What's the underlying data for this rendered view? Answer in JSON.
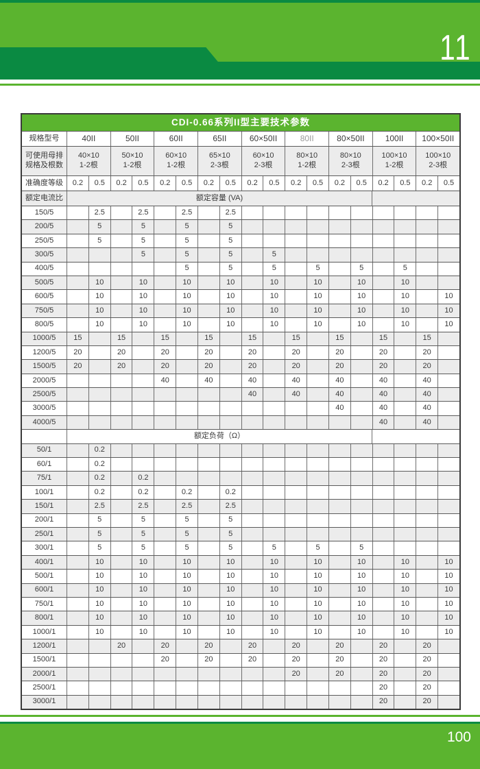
{
  "page": {
    "top_page_number": "11",
    "bottom_page_number": "100"
  },
  "colors": {
    "bright_green": "#5bb42f",
    "dark_green": "#0a8a42",
    "row_shade": "#ececec"
  },
  "table": {
    "title": "CDI-0.66系列II型主要技术参数",
    "spec_label": "规格型号",
    "models": [
      "40II",
      "50II",
      "60II",
      "65II",
      "60×50II",
      "80II",
      "80×50II",
      "100II",
      "100×50II"
    ],
    "models_muted": [
      5
    ],
    "busbar_label": [
      "可使用母排",
      "规格及根数"
    ],
    "busbars": [
      {
        "size": "40×10",
        "count": "1-2根"
      },
      {
        "size": "50×10",
        "count": "1-2根"
      },
      {
        "size": "60×10",
        "count": "1-2根"
      },
      {
        "size": "65×10",
        "count": "2-3根"
      },
      {
        "size": "60×10",
        "count": "2-3根"
      },
      {
        "size": "80×10",
        "count": "1-2根"
      },
      {
        "size": "80×10",
        "count": "2-3根"
      },
      {
        "size": "100×10",
        "count": "1-2根"
      },
      {
        "size": "100×10",
        "count": "2-3根"
      }
    ],
    "accuracy_label": "准确度等级",
    "accuracy_classes": [
      "0.2",
      "0.5"
    ],
    "current_ratio_label": "额定电流比",
    "va_section_header": "额定容量 (VA)",
    "ohm_section_header": "额定负荷（Ω）",
    "va_rows": [
      {
        "label": "150/5",
        "cells": [
          "",
          "2.5",
          "",
          "2.5",
          "",
          "2.5",
          "",
          "2.5",
          "",
          "",
          "",
          "",
          "",
          "",
          "",
          "",
          "",
          ""
        ]
      },
      {
        "label": "200/5",
        "cells": [
          "",
          "5",
          "",
          "5",
          "",
          "5",
          "",
          "5",
          "",
          "",
          "",
          "",
          "",
          "",
          "",
          "",
          "",
          ""
        ]
      },
      {
        "label": "250/5",
        "cells": [
          "",
          "5",
          "",
          "5",
          "",
          "5",
          "",
          "5",
          "",
          "",
          "",
          "",
          "",
          "",
          "",
          "",
          "",
          ""
        ]
      },
      {
        "label": "300/5",
        "cells": [
          "",
          "",
          "",
          "5",
          "",
          "5",
          "",
          "5",
          "",
          "5",
          "",
          "",
          "",
          "",
          "",
          "",
          "",
          ""
        ]
      },
      {
        "label": "400/5",
        "cells": [
          "",
          "",
          "",
          "",
          "",
          "5",
          "",
          "5",
          "",
          "5",
          "",
          "5",
          "",
          "5",
          "",
          "5",
          "",
          ""
        ]
      },
      {
        "label": "500/5",
        "cells": [
          "",
          "10",
          "",
          "10",
          "",
          "10",
          "",
          "10",
          "",
          "10",
          "",
          "10",
          "",
          "10",
          "",
          "10",
          "",
          ""
        ]
      },
      {
        "label": "600/5",
        "cells": [
          "",
          "10",
          "",
          "10",
          "",
          "10",
          "",
          "10",
          "",
          "10",
          "",
          "10",
          "",
          "10",
          "",
          "10",
          "",
          "10"
        ]
      },
      {
        "label": "750/5",
        "cells": [
          "",
          "10",
          "",
          "10",
          "",
          "10",
          "",
          "10",
          "",
          "10",
          "",
          "10",
          "",
          "10",
          "",
          "10",
          "",
          "10"
        ]
      },
      {
        "label": "800/5",
        "cells": [
          "",
          "10",
          "",
          "10",
          "",
          "10",
          "",
          "10",
          "",
          "10",
          "",
          "10",
          "",
          "10",
          "",
          "10",
          "",
          "10"
        ]
      },
      {
        "label": "1000/5",
        "cells": [
          "15",
          "",
          "15",
          "",
          "15",
          "",
          "15",
          "",
          "15",
          "",
          "15",
          "",
          "15",
          "",
          "15",
          "",
          "15",
          ""
        ]
      },
      {
        "label": "1200/5",
        "cells": [
          "20",
          "",
          "20",
          "",
          "20",
          "",
          "20",
          "",
          "20",
          "",
          "20",
          "",
          "20",
          "",
          "20",
          "",
          "20",
          ""
        ]
      },
      {
        "label": "1500/5",
        "cells": [
          "20",
          "",
          "20",
          "",
          "20",
          "",
          "20",
          "",
          "20",
          "",
          "20",
          "",
          "20",
          "",
          "20",
          "",
          "20",
          ""
        ]
      },
      {
        "label": "2000/5",
        "cells": [
          "",
          "",
          "",
          "",
          "40",
          "",
          "40",
          "",
          "40",
          "",
          "40",
          "",
          "40",
          "",
          "40",
          "",
          "40",
          ""
        ]
      },
      {
        "label": "2500/5",
        "cells": [
          "",
          "",
          "",
          "",
          "",
          "",
          "",
          "",
          "40",
          "",
          "40",
          "",
          "40",
          "",
          "40",
          "",
          "40",
          ""
        ]
      },
      {
        "label": "3000/5",
        "cells": [
          "",
          "",
          "",
          "",
          "",
          "",
          "",
          "",
          "",
          "",
          "",
          "",
          "40",
          "",
          "40",
          "",
          "40",
          ""
        ]
      },
      {
        "label": "4000/5",
        "cells": [
          "",
          "",
          "",
          "",
          "",
          "",
          "",
          "",
          "",
          "",
          "",
          "",
          "",
          "",
          "40",
          "",
          "40",
          ""
        ]
      }
    ],
    "ohm_rows": [
      {
        "label": "50/1",
        "cells": [
          "",
          "0.2",
          "",
          "",
          "",
          "",
          "",
          "",
          "",
          "",
          "",
          "",
          "",
          "",
          "",
          "",
          "",
          ""
        ]
      },
      {
        "label": "60/1",
        "cells": [
          "",
          "0.2",
          "",
          "",
          "",
          "",
          "",
          "",
          "",
          "",
          "",
          "",
          "",
          "",
          "",
          "",
          "",
          ""
        ]
      },
      {
        "label": "75/1",
        "cells": [
          "",
          "0.2",
          "",
          "0.2",
          "",
          "",
          "",
          "",
          "",
          "",
          "",
          "",
          "",
          "",
          "",
          "",
          "",
          ""
        ]
      },
      {
        "label": "100/1",
        "cells": [
          "",
          "0.2",
          "",
          "0.2",
          "",
          "0.2",
          "",
          "0.2",
          "",
          "",
          "",
          "",
          "",
          "",
          "",
          "",
          "",
          ""
        ]
      },
      {
        "label": "150/1",
        "cells": [
          "",
          "2.5",
          "",
          "2.5",
          "",
          "2.5",
          "",
          "2.5",
          "",
          "",
          "",
          "",
          "",
          "",
          "",
          "",
          "",
          ""
        ]
      },
      {
        "label": "200/1",
        "cells": [
          "",
          "5",
          "",
          "5",
          "",
          "5",
          "",
          "5",
          "",
          "",
          "",
          "",
          "",
          "",
          "",
          "",
          "",
          ""
        ]
      },
      {
        "label": "250/1",
        "cells": [
          "",
          "5",
          "",
          "5",
          "",
          "5",
          "",
          "5",
          "",
          "",
          "",
          "",
          "",
          "",
          "",
          "",
          "",
          ""
        ]
      },
      {
        "label": "300/1",
        "cells": [
          "",
          "5",
          "",
          "5",
          "",
          "5",
          "",
          "5",
          "",
          "5",
          "",
          "5",
          "",
          "5",
          "",
          "",
          "",
          ""
        ]
      },
      {
        "label": "400/1",
        "cells": [
          "",
          "10",
          "",
          "10",
          "",
          "10",
          "",
          "10",
          "",
          "10",
          "",
          "10",
          "",
          "10",
          "",
          "10",
          "",
          "10"
        ]
      },
      {
        "label": "500/1",
        "cells": [
          "",
          "10",
          "",
          "10",
          "",
          "10",
          "",
          "10",
          "",
          "10",
          "",
          "10",
          "",
          "10",
          "",
          "10",
          "",
          "10"
        ]
      },
      {
        "label": "600/1",
        "cells": [
          "",
          "10",
          "",
          "10",
          "",
          "10",
          "",
          "10",
          "",
          "10",
          "",
          "10",
          "",
          "10",
          "",
          "10",
          "",
          "10"
        ]
      },
      {
        "label": "750/1",
        "cells": [
          "",
          "10",
          "",
          "10",
          "",
          "10",
          "",
          "10",
          "",
          "10",
          "",
          "10",
          "",
          "10",
          "",
          "10",
          "",
          "10"
        ]
      },
      {
        "label": "800/1",
        "cells": [
          "",
          "10",
          "",
          "10",
          "",
          "10",
          "",
          "10",
          "",
          "10",
          "",
          "10",
          "",
          "10",
          "",
          "10",
          "",
          "10"
        ]
      },
      {
        "label": "1000/1",
        "cells": [
          "",
          "10",
          "",
          "10",
          "",
          "10",
          "",
          "10",
          "",
          "10",
          "",
          "10",
          "",
          "10",
          "",
          "10",
          "",
          "10"
        ]
      },
      {
        "label": "1200/1",
        "cells": [
          "",
          "",
          "20",
          "",
          "20",
          "",
          "20",
          "",
          "20",
          "",
          "20",
          "",
          "20",
          "",
          "20",
          "",
          "20",
          ""
        ]
      },
      {
        "label": "1500/1",
        "cells": [
          "",
          "",
          "",
          "",
          "20",
          "",
          "20",
          "",
          "20",
          "",
          "20",
          "",
          "20",
          "",
          "20",
          "",
          "20",
          ""
        ]
      },
      {
        "label": "2000/1",
        "cells": [
          "",
          "",
          "",
          "",
          "",
          "",
          "",
          "",
          "",
          "",
          "20",
          "",
          "20",
          "",
          "20",
          "",
          "20",
          ""
        ]
      },
      {
        "label": "2500/1",
        "cells": [
          "",
          "",
          "",
          "",
          "",
          "",
          "",
          "",
          "",
          "",
          "",
          "",
          "",
          "",
          "20",
          "",
          "20",
          ""
        ]
      },
      {
        "label": "3000/1",
        "cells": [
          "",
          "",
          "",
          "",
          "",
          "",
          "",
          "",
          "",
          "",
          "",
          "",
          "",
          "",
          "20",
          "",
          "20",
          ""
        ]
      }
    ]
  }
}
